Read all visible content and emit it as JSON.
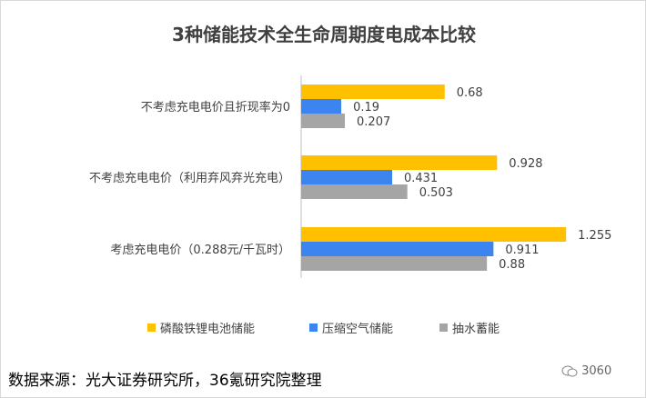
{
  "chart_data": {
    "type": "bar",
    "orientation": "horizontal",
    "title": "3种储能技术全生命周期度电成本比较",
    "categories": [
      "不考虑充电电价且折现率为0",
      "不考虑充电电价（利用弃风弃光充电）",
      "考虑充电电价（0.288元/千瓦时）"
    ],
    "series": [
      {
        "name": "磷酸铁锂电池储能",
        "values": [
          0.68,
          0.928,
          1.255
        ],
        "labels": [
          "0.68",
          "0.928",
          "1.255"
        ],
        "color": "#ffc000"
      },
      {
        "name": "压缩空气储能",
        "values": [
          0.19,
          0.431,
          0.911
        ],
        "labels": [
          "0.19",
          "0.431",
          "0.911"
        ],
        "color": "#3c85f0"
      },
      {
        "name": "抽水蓄能",
        "values": [
          0.207,
          0.503,
          0.88
        ],
        "labels": [
          "0.207",
          "0.503",
          "0.88"
        ],
        "color": "#a5a5a5"
      }
    ],
    "xlim": [
      0,
      1.4
    ],
    "grid": false,
    "legend_position": "bottom"
  },
  "footer": {
    "source": "数据来源：光大证券研究所，36氪研究院整理",
    "watermark": "3060"
  }
}
